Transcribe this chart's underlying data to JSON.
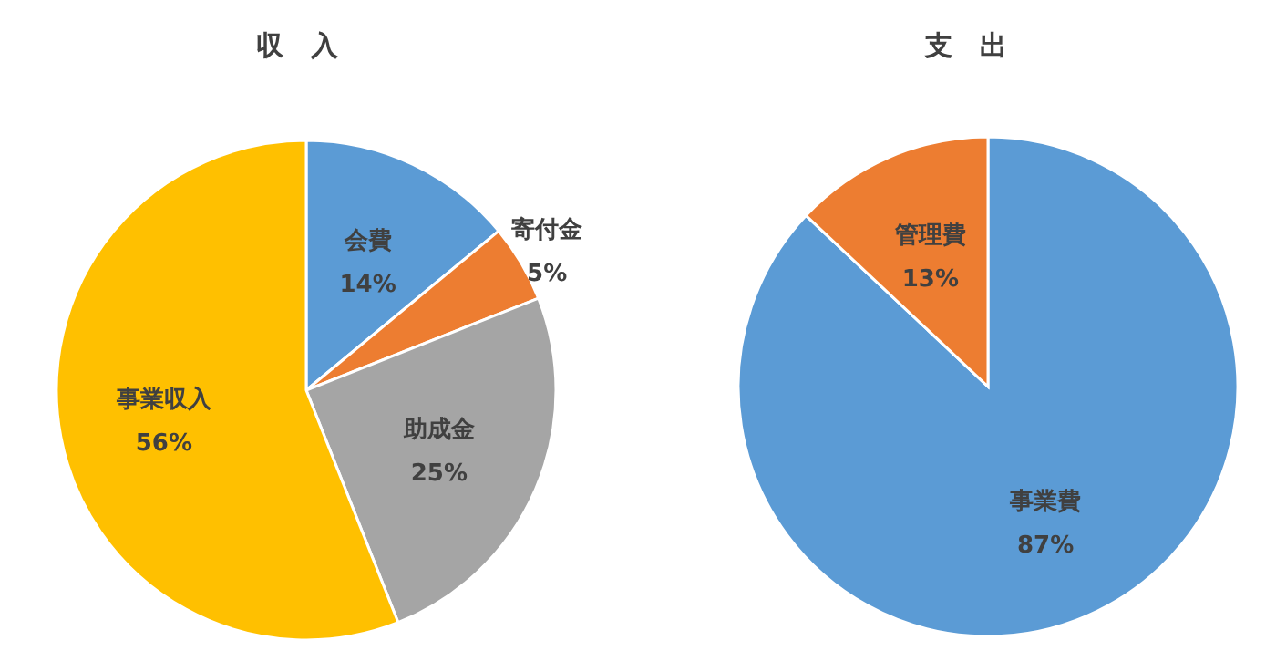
{
  "chart_data": [
    {
      "type": "pie",
      "title": "収　入",
      "categories": [
        "会費",
        "寄付金",
        "助成金",
        "事業収入"
      ],
      "values": [
        14,
        5,
        25,
        56
      ],
      "value_labels": [
        "14%",
        "5%",
        "25%",
        "56%"
      ],
      "colors": [
        "#5b9bd5",
        "#ed7d31",
        "#a5a5a5",
        "#ffc000"
      ]
    },
    {
      "type": "pie",
      "title": "支　出",
      "categories": [
        "事業費",
        "管理費"
      ],
      "values": [
        87,
        13
      ],
      "value_labels": [
        "87%",
        "13%"
      ],
      "colors": [
        "#5b9bd5",
        "#ed7d31"
      ]
    }
  ]
}
